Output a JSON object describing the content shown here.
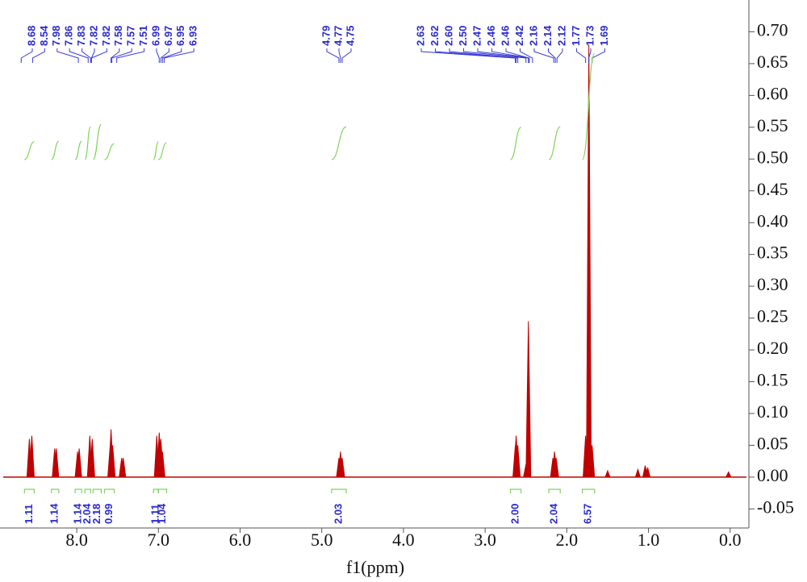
{
  "chart_data": {
    "type": "nmr",
    "x_label": "f1(ppm)",
    "xlim": [
      8.9,
      -0.2
    ],
    "ylim": [
      -0.08,
      0.75
    ],
    "xticks": [
      {
        "value": 8,
        "label": "8.0"
      },
      {
        "value": 7,
        "label": "7.0"
      },
      {
        "value": 6,
        "label": "6.0"
      },
      {
        "value": 5,
        "label": "5.0"
      },
      {
        "value": 4,
        "label": "4.0"
      },
      {
        "value": 3,
        "label": "3.0"
      },
      {
        "value": 2,
        "label": "2.0"
      },
      {
        "value": 1,
        "label": "1.0"
      },
      {
        "value": 0,
        "label": "0.0"
      }
    ],
    "yticks": [
      {
        "value": 0.7,
        "label": "0.70"
      },
      {
        "value": 0.65,
        "label": "0.65"
      },
      {
        "value": 0.6,
        "label": "0.60"
      },
      {
        "value": 0.55,
        "label": "0.55"
      },
      {
        "value": 0.5,
        "label": "0.50"
      },
      {
        "value": 0.45,
        "label": "0.45"
      },
      {
        "value": 0.4,
        "label": "0.40"
      },
      {
        "value": 0.35,
        "label": "0.35"
      },
      {
        "value": 0.3,
        "label": "0.30"
      },
      {
        "value": 0.25,
        "label": "0.25"
      },
      {
        "value": 0.2,
        "label": "0.20"
      },
      {
        "value": 0.15,
        "label": "0.15"
      },
      {
        "value": 0.1,
        "label": "0.10"
      },
      {
        "value": 0.05,
        "label": "0.05"
      },
      {
        "value": 0,
        "label": "0.00"
      },
      {
        "value": -0.05,
        "label": "-0.05"
      }
    ],
    "color": "#c00000",
    "peaks": {
      "x": [
        8.58,
        8.55,
        8.27,
        8.25,
        7.99,
        7.97,
        7.84,
        7.81,
        7.59,
        7.58,
        7.56,
        7.45,
        7.43,
        7.02,
        6.99,
        6.97,
        6.95,
        4.79,
        4.77,
        4.75,
        2.63,
        2.62,
        2.6,
        2.5,
        2.47,
        2.17,
        2.15,
        2.13,
        1.77,
        1.73,
        1.69,
        1.5,
        1.13,
        1.04,
        1.01,
        0.02
      ],
      "values": [
        0.06,
        0.065,
        0.045,
        0.045,
        0.04,
        0.045,
        0.065,
        0.06,
        0.05,
        0.075,
        0.05,
        0.03,
        0.03,
        0.065,
        0.07,
        0.06,
        0.04,
        0.03,
        0.04,
        0.03,
        0.05,
        0.065,
        0.05,
        0.02,
        0.245,
        0.03,
        0.04,
        0.03,
        0.065,
        0.68,
        0.05,
        0.01,
        0.012,
        0.018,
        0.015,
        0.008
      ]
    },
    "peak_labels": [
      "8.68",
      "8.54",
      "7.98",
      "7.86",
      "7.83",
      "7.82",
      "7.82",
      "7.58",
      "7.57",
      "7.51",
      "6.99",
      "6.97",
      "6.95",
      "6.93",
      "4.79",
      "4.77",
      "4.75",
      "2.63",
      "2.62",
      "2.60",
      "2.50",
      "2.47",
      "2.46",
      "2.46",
      "2.42",
      "2.16",
      "2.14",
      "2.12",
      "1.77",
      "1.73",
      "1.69"
    ],
    "integral_color": "#7fd45a",
    "integrals": [
      {
        "range": [
          8.64,
          8.52
        ],
        "label": "1.11"
      },
      {
        "range": [
          8.31,
          8.22
        ],
        "label": "1.14"
      },
      {
        "range": [
          8.02,
          7.94
        ],
        "label": "1.14"
      },
      {
        "range": [
          7.9,
          7.83
        ],
        "label": "2.04"
      },
      {
        "range": [
          7.8,
          7.7
        ],
        "label": "2.18"
      },
      {
        "range": [
          7.66,
          7.54
        ],
        "label": "0.99"
      },
      {
        "range": [
          7.06,
          7.0
        ],
        "label": "1.11"
      },
      {
        "range": [
          7.0,
          6.9
        ],
        "label": "1.04"
      },
      {
        "range": [
          4.88,
          4.7
        ],
        "label": "2.03"
      },
      {
        "range": [
          2.69,
          2.56
        ],
        "label": "2.00"
      },
      {
        "range": [
          2.22,
          2.08
        ],
        "label": "2.04"
      },
      {
        "range": [
          1.81,
          1.66
        ],
        "label": "6.57"
      }
    ]
  }
}
